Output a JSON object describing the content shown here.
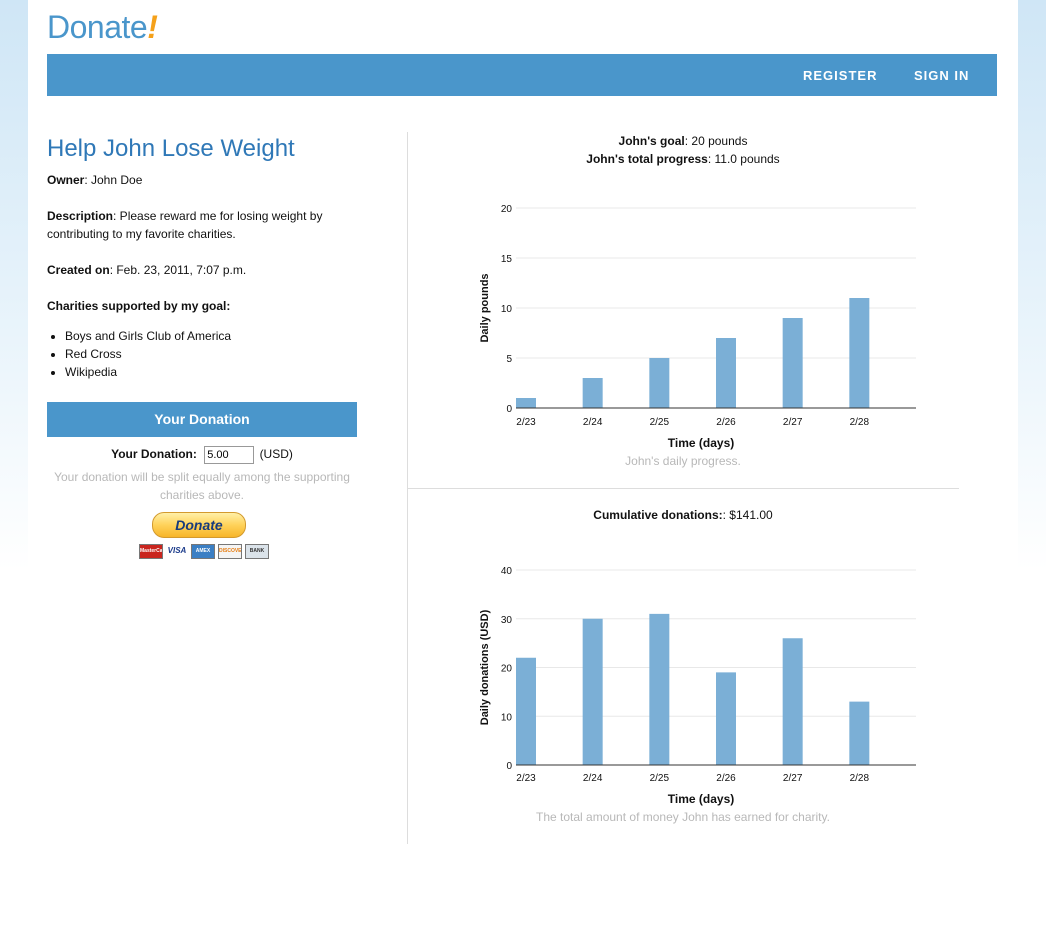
{
  "logo": {
    "text": "Donate",
    "bang": "!"
  },
  "nav": {
    "register": "REGISTER",
    "signin": "SIGN IN"
  },
  "goal": {
    "title": "Help John Lose Weight",
    "owner_label": "Owner",
    "owner": ": John Doe",
    "description_label": "Description",
    "description": ": Please reward me for losing weight by contributing to my favorite charities.",
    "created_label": "Created on",
    "created": ": Feb. 23, 2011, 7:07 p.m.",
    "charities_label": "Charities supported by my goal:",
    "charities": [
      "Boys and Girls Club of America",
      "Red Cross",
      "Wikipedia"
    ]
  },
  "donation": {
    "header": "Your Donation",
    "label": "Your Donation:",
    "value": "5.00",
    "currency": "(USD)",
    "note": "Your donation will be split equally among the supporting charities above.",
    "button": "Donate",
    "cards": [
      "MasterCard",
      "VISA",
      "AMEX",
      "DISCOVER",
      "BANK"
    ]
  },
  "summary": {
    "goal_label": "John's goal",
    "goal_value": ": 20 pounds",
    "progress_label": "John's total progress",
    "progress_value": ": 11.0 pounds",
    "cumulative_label": "Cumulative donations:",
    "cumulative_value": ": $141.00"
  },
  "chart_data": [
    {
      "type": "bar",
      "categories": [
        "2/23",
        "2/24",
        "2/25",
        "2/26",
        "2/27",
        "2/28"
      ],
      "values": [
        1,
        3,
        5,
        7,
        9,
        11
      ],
      "xlabel": "Time (days)",
      "ylabel": "Daily pounds",
      "ylim": [
        0,
        20
      ],
      "yticks": [
        0,
        5,
        10,
        15,
        20
      ],
      "caption": "John's daily progress.",
      "grid": true,
      "color": "#7bafd6"
    },
    {
      "type": "bar",
      "categories": [
        "2/23",
        "2/24",
        "2/25",
        "2/26",
        "2/27",
        "2/28"
      ],
      "values": [
        22,
        30,
        31,
        19,
        26,
        13
      ],
      "xlabel": "Time (days)",
      "ylabel": "Daily donations (USD)",
      "ylim": [
        0,
        40
      ],
      "yticks": [
        0,
        10,
        20,
        30,
        40
      ],
      "caption": "The total amount of money John has earned for charity.",
      "grid": true,
      "color": "#7bafd6"
    }
  ]
}
